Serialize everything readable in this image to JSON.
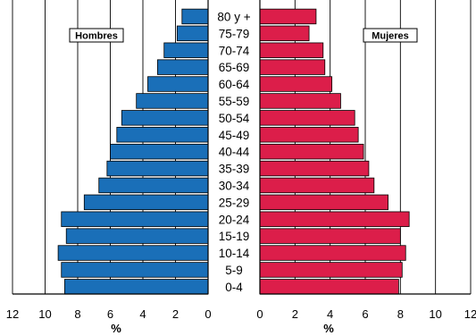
{
  "chart_data": {
    "type": "bar",
    "orientation": "horizontal",
    "layout": "population-pyramid",
    "categories": [
      "80 y +",
      "75-79",
      "70-74",
      "65-69",
      "60-64",
      "55-59",
      "50-54",
      "45-49",
      "40-44",
      "35-39",
      "30-34",
      "25-29",
      "20-24",
      "15-19",
      "10-14",
      "5-9",
      "0-4"
    ],
    "series": [
      {
        "name": "Hombres",
        "side": "left",
        "color": "#1a6fb8",
        "values": [
          1.6,
          1.9,
          2.7,
          3.1,
          3.7,
          4.4,
          5.3,
          5.6,
          6.0,
          6.2,
          6.7,
          7.6,
          9.0,
          8.7,
          9.2,
          9.0,
          8.8
        ]
      },
      {
        "name": "Mujeres",
        "side": "right",
        "color": "#dc1e4a",
        "values": [
          3.2,
          2.8,
          3.6,
          3.7,
          4.1,
          4.6,
          5.4,
          5.6,
          5.9,
          6.2,
          6.5,
          7.3,
          8.5,
          8.0,
          8.3,
          8.1,
          7.9
        ]
      }
    ],
    "xlim": [
      0,
      12
    ],
    "x_ticks": [
      0,
      2,
      4,
      6,
      8,
      10,
      12
    ],
    "xlabel": "%",
    "grid": true,
    "legend": "inline labels top-left and top-right"
  }
}
